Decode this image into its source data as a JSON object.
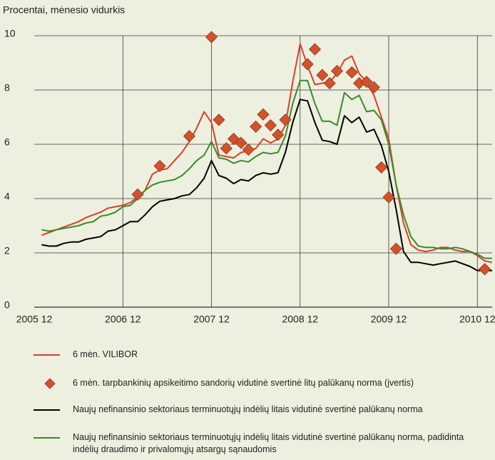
{
  "chart_data": {
    "type": "line",
    "title": "Procentai, mėnesio vidurkis",
    "x": [
      "2006-01",
      "2006-02",
      "2006-03",
      "2006-04",
      "2006-05",
      "2006-06",
      "2006-07",
      "2006-08",
      "2006-09",
      "2006-10",
      "2006-11",
      "2006-12",
      "2007-01",
      "2007-02",
      "2007-03",
      "2007-04",
      "2007-05",
      "2007-06",
      "2007-07",
      "2007-08",
      "2007-09",
      "2007-10",
      "2007-11",
      "2007-12",
      "2008-01",
      "2008-02",
      "2008-03",
      "2008-04",
      "2008-05",
      "2008-06",
      "2008-07",
      "2008-08",
      "2008-09",
      "2008-10",
      "2008-11",
      "2008-12",
      "2009-01",
      "2009-02",
      "2009-03",
      "2009-04",
      "2009-05",
      "2009-06",
      "2009-07",
      "2009-08",
      "2009-09",
      "2009-10",
      "2009-11",
      "2009-12",
      "2010-01",
      "2010-02",
      "2010-03",
      "2010-04",
      "2010-05",
      "2010-06",
      "2010-07",
      "2010-08",
      "2010-09",
      "2010-10",
      "2010-11",
      "2010-12",
      "2011-01",
      "2011-02"
    ],
    "series": [
      {
        "name": "6 mėn. VILIBOR",
        "color": "#d8402a",
        "values": [
          2.65,
          2.75,
          2.85,
          2.95,
          3.05,
          3.15,
          3.3,
          3.4,
          3.5,
          3.65,
          3.7,
          3.75,
          3.85,
          4.05,
          4.3,
          4.9,
          5.05,
          5.1,
          5.4,
          5.7,
          6.1,
          6.6,
          7.2,
          6.8,
          5.6,
          5.55,
          5.5,
          5.7,
          5.75,
          5.85,
          6.2,
          6.05,
          6.2,
          6.7,
          8.3,
          9.7,
          8.9,
          8.2,
          8.25,
          8.3,
          8.6,
          9.1,
          9.25,
          8.6,
          8.3,
          7.8,
          7.0,
          6.2,
          4.5,
          3.1,
          2.3,
          2.1,
          2.05,
          2.1,
          2.2,
          2.2,
          2.1,
          2.05,
          2.05,
          1.9,
          1.7,
          1.65
        ]
      },
      {
        "name": "6 mėn. tarpbankinių apsikeitimo sandorių vidutinė svertinė litų palūkanų norma (įvertis)",
        "color": "#d4522b",
        "type": "scatter",
        "x": [
          "2007-02",
          "2007-05",
          "2007-09",
          "2007-12",
          "2008-01",
          "2008-02",
          "2008-03",
          "2008-04",
          "2008-05",
          "2008-06",
          "2008-07",
          "2008-08",
          "2008-09",
          "2008-10",
          "2009-01",
          "2009-02",
          "2009-03",
          "2009-04",
          "2009-05",
          "2009-07",
          "2009-08",
          "2009-09",
          "2009-10",
          "2009-11",
          "2009-12",
          "2010-01",
          "2011-01"
        ],
        "values": [
          4.15,
          5.2,
          6.3,
          9.95,
          6.9,
          5.85,
          6.2,
          6.05,
          5.8,
          6.65,
          7.1,
          6.7,
          6.35,
          6.9,
          8.95,
          9.5,
          8.55,
          8.25,
          8.7,
          8.65,
          8.25,
          8.3,
          8.1,
          5.15,
          4.05,
          2.15,
          1.4
        ]
      },
      {
        "name": "Naujų nefinansinio sektoriaus terminuotųjų indėlių litais vidutinė svertinė palūkanų norma",
        "color": "#000000",
        "values": [
          2.3,
          2.25,
          2.25,
          2.35,
          2.4,
          2.4,
          2.5,
          2.55,
          2.6,
          2.8,
          2.85,
          3.0,
          3.15,
          3.15,
          3.4,
          3.7,
          3.9,
          3.95,
          4.0,
          4.1,
          4.15,
          4.4,
          4.75,
          5.4,
          4.85,
          4.75,
          4.55,
          4.7,
          4.65,
          4.85,
          4.95,
          4.9,
          4.95,
          5.7,
          6.8,
          7.65,
          7.6,
          6.8,
          6.15,
          6.1,
          6.0,
          7.05,
          6.8,
          7.0,
          6.45,
          6.55,
          5.95,
          5.0,
          3.6,
          2.05,
          1.65,
          1.65,
          1.6,
          1.55,
          1.6,
          1.65,
          1.7,
          1.6,
          1.5,
          1.35,
          1.35,
          1.35
        ]
      },
      {
        "name": "Naujų nefinansinio sektoriaus terminuotųjų indėlių litais vidutinė svertinė palūkanų norma, padidinta indėlių draudimo ir privalomųjų atsargų sąnaudomis",
        "color": "#3a8a2a",
        "values": [
          2.85,
          2.8,
          2.85,
          2.9,
          2.95,
          3.0,
          3.1,
          3.15,
          3.35,
          3.4,
          3.5,
          3.7,
          3.75,
          4.0,
          4.3,
          4.5,
          4.6,
          4.65,
          4.7,
          4.85,
          5.1,
          5.4,
          5.6,
          6.1,
          5.5,
          5.45,
          5.3,
          5.4,
          5.35,
          5.55,
          5.7,
          5.65,
          5.7,
          6.3,
          7.5,
          8.35,
          8.35,
          7.5,
          6.85,
          6.85,
          6.7,
          7.9,
          7.65,
          7.8,
          7.2,
          7.25,
          6.9,
          6.0,
          4.5,
          3.4,
          2.6,
          2.25,
          2.2,
          2.2,
          2.15,
          2.15,
          2.2,
          2.15,
          2.05,
          1.95,
          1.8,
          1.8
        ]
      }
    ],
    "xlim": [
      "2005-12",
      "2011-02"
    ],
    "xticks": [
      {
        "value": "2005-12",
        "label": "2005 12"
      },
      {
        "value": "2006-12",
        "label": "2006 12"
      },
      {
        "value": "2007-12",
        "label": "2007 12"
      },
      {
        "value": "2008-12",
        "label": "2008 12"
      },
      {
        "value": "2009-12",
        "label": "2009 12"
      },
      {
        "value": "2010-12",
        "label": "2010 12"
      }
    ],
    "ylim": [
      0,
      10
    ],
    "yticks": [
      0,
      2,
      4,
      6,
      8,
      10
    ],
    "grid": true
  }
}
